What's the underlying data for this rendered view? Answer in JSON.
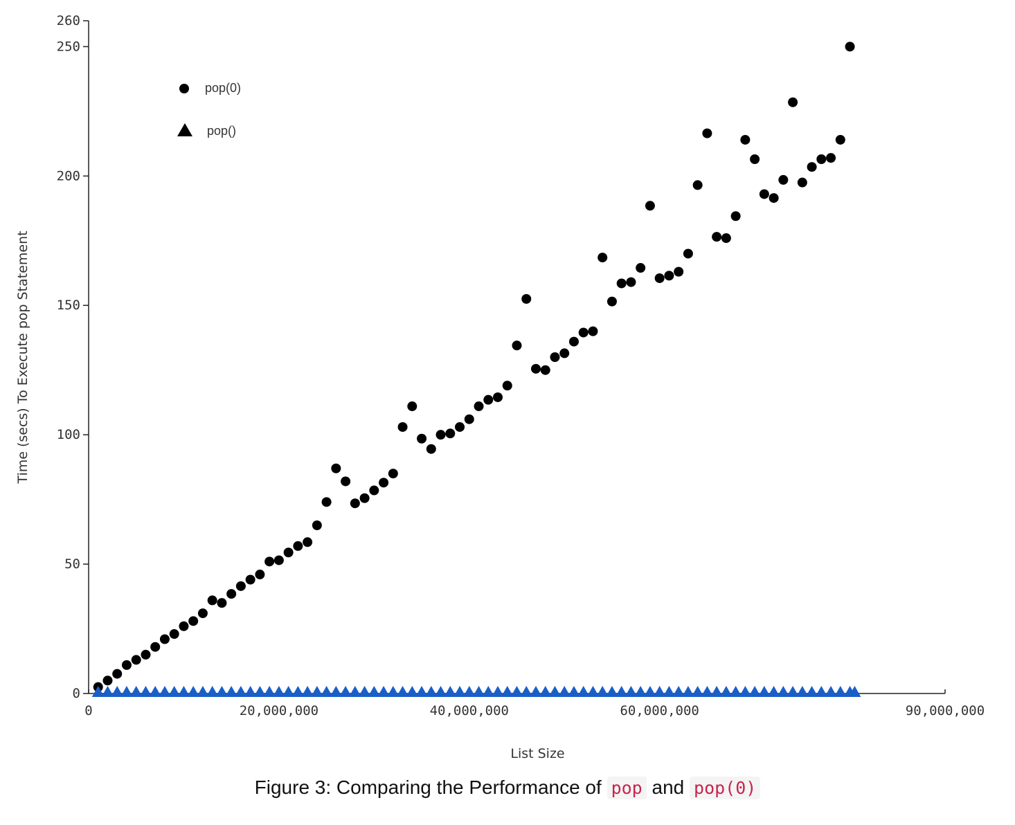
{
  "caption": {
    "prefix": "Figure 3: Comparing the Performance of",
    "code1": "pop",
    "middle": "and",
    "code2": "pop(0)"
  },
  "chart_data": {
    "type": "scatter",
    "xlabel": "List Size",
    "ylabel": "Time (secs) To Execute pop Statement",
    "xlim": [
      0,
      90000000
    ],
    "ylim": [
      0,
      260
    ],
    "x_ticks": [
      {
        "value": 0,
        "label": "0"
      },
      {
        "value": 20000000,
        "label": "20,000,000"
      },
      {
        "value": 40000000,
        "label": "40,000,000"
      },
      {
        "value": 60000000,
        "label": "60,000,000"
      },
      {
        "value": 90000000,
        "label": "90,000,000"
      }
    ],
    "y_ticks": [
      {
        "value": 0,
        "label": "0"
      },
      {
        "value": 50,
        "label": "50"
      },
      {
        "value": 100,
        "label": "100"
      },
      {
        "value": 150,
        "label": "150"
      },
      {
        "value": 200,
        "label": "200"
      },
      {
        "value": 250,
        "label": "250"
      },
      {
        "value": 260,
        "label": "260"
      }
    ],
    "grid": false,
    "legend_position": "top-left",
    "series": [
      {
        "name": "pop(0)",
        "marker": "circle",
        "color": "#000000",
        "points": [
          [
            1000000,
            2.5
          ],
          [
            2000000,
            5.0
          ],
          [
            3000000,
            7.6
          ],
          [
            4000000,
            11.0
          ],
          [
            5000000,
            13.0
          ],
          [
            6000000,
            15.0
          ],
          [
            7000000,
            18.0
          ],
          [
            8000000,
            21.0
          ],
          [
            9000000,
            23.0
          ],
          [
            10000000,
            26.0
          ],
          [
            11000000,
            28.0
          ],
          [
            12000000,
            31.0
          ],
          [
            13000000,
            36.0
          ],
          [
            14000000,
            35.0
          ],
          [
            15000000,
            38.5
          ],
          [
            16000000,
            41.5
          ],
          [
            17000000,
            44.0
          ],
          [
            18000000,
            46.0
          ],
          [
            19000000,
            51.0
          ],
          [
            20000000,
            51.5
          ],
          [
            21000000,
            54.5
          ],
          [
            22000000,
            57.0
          ],
          [
            23000000,
            58.5
          ],
          [
            24000000,
            65.0
          ],
          [
            25000000,
            74.0
          ],
          [
            26000000,
            87.0
          ],
          [
            27000000,
            82.0
          ],
          [
            28000000,
            73.5
          ],
          [
            29000000,
            75.5
          ],
          [
            30000000,
            78.5
          ],
          [
            31000000,
            81.5
          ],
          [
            32000000,
            85.0
          ],
          [
            33000000,
            103.0
          ],
          [
            34000000,
            111.0
          ],
          [
            35000000,
            98.5
          ],
          [
            36000000,
            94.5
          ],
          [
            37000000,
            100.0
          ],
          [
            38000000,
            100.5
          ],
          [
            39000000,
            103.0
          ],
          [
            40000000,
            106.0
          ],
          [
            41000000,
            111.0
          ],
          [
            42000000,
            113.5
          ],
          [
            43000000,
            114.5
          ],
          [
            44000000,
            119.0
          ],
          [
            45000000,
            134.5
          ],
          [
            46000000,
            152.5
          ],
          [
            47000000,
            125.5
          ],
          [
            48000000,
            125.0
          ],
          [
            49000000,
            130.0
          ],
          [
            50000000,
            131.5
          ],
          [
            51000000,
            136.0
          ],
          [
            52000000,
            139.5
          ],
          [
            53000000,
            140.0
          ],
          [
            54000000,
            168.5
          ],
          [
            55000000,
            151.5
          ],
          [
            56000000,
            158.5
          ],
          [
            57000000,
            159.0
          ],
          [
            58000000,
            164.5
          ],
          [
            59000000,
            188.5
          ],
          [
            60000000,
            160.5
          ],
          [
            61000000,
            161.5
          ],
          [
            62000000,
            163.0
          ],
          [
            63000000,
            170.0
          ],
          [
            64000000,
            196.5
          ],
          [
            65000000,
            216.5
          ],
          [
            66000000,
            176.5
          ],
          [
            67000000,
            176.0
          ],
          [
            68000000,
            184.5
          ],
          [
            69000000,
            214.0
          ],
          [
            70000000,
            206.5
          ],
          [
            71000000,
            193.0
          ],
          [
            72000000,
            191.5
          ],
          [
            73000000,
            198.5
          ],
          [
            74000000,
            228.5
          ],
          [
            75000000,
            197.5
          ],
          [
            76000000,
            203.5
          ],
          [
            77000000,
            206.5
          ],
          [
            78000000,
            207.0
          ],
          [
            79000000,
            214.0
          ],
          [
            80000000,
            250.0
          ]
        ]
      },
      {
        "name": "pop()",
        "marker": "triangle",
        "color": "#1a5fc8",
        "points": [
          [
            1000000,
            0
          ],
          [
            2000000,
            0
          ],
          [
            3000000,
            0
          ],
          [
            4000000,
            0
          ],
          [
            5000000,
            0
          ],
          [
            6000000,
            0
          ],
          [
            7000000,
            0
          ],
          [
            8000000,
            0
          ],
          [
            9000000,
            0
          ],
          [
            10000000,
            0
          ],
          [
            11000000,
            0
          ],
          [
            12000000,
            0
          ],
          [
            13000000,
            0
          ],
          [
            14000000,
            0
          ],
          [
            15000000,
            0
          ],
          [
            16000000,
            0
          ],
          [
            17000000,
            0
          ],
          [
            18000000,
            0
          ],
          [
            19000000,
            0
          ],
          [
            20000000,
            0
          ],
          [
            21000000,
            0
          ],
          [
            22000000,
            0
          ],
          [
            23000000,
            0
          ],
          [
            24000000,
            0
          ],
          [
            25000000,
            0
          ],
          [
            26000000,
            0
          ],
          [
            27000000,
            0
          ],
          [
            28000000,
            0
          ],
          [
            29000000,
            0
          ],
          [
            30000000,
            0
          ],
          [
            31000000,
            0
          ],
          [
            32000000,
            0
          ],
          [
            33000000,
            0
          ],
          [
            34000000,
            0
          ],
          [
            35000000,
            0
          ],
          [
            36000000,
            0
          ],
          [
            37000000,
            0
          ],
          [
            38000000,
            0
          ],
          [
            39000000,
            0
          ],
          [
            40000000,
            0
          ],
          [
            41000000,
            0
          ],
          [
            42000000,
            0
          ],
          [
            43000000,
            0
          ],
          [
            44000000,
            0
          ],
          [
            45000000,
            0
          ],
          [
            46000000,
            0
          ],
          [
            47000000,
            0
          ],
          [
            48000000,
            0
          ],
          [
            49000000,
            0
          ],
          [
            50000000,
            0
          ],
          [
            51000000,
            0
          ],
          [
            52000000,
            0
          ],
          [
            53000000,
            0
          ],
          [
            54000000,
            0
          ],
          [
            55000000,
            0
          ],
          [
            56000000,
            0
          ],
          [
            57000000,
            0
          ],
          [
            58000000,
            0
          ],
          [
            59000000,
            0
          ],
          [
            60000000,
            0
          ],
          [
            61000000,
            0
          ],
          [
            62000000,
            0
          ],
          [
            63000000,
            0
          ],
          [
            64000000,
            0
          ],
          [
            65000000,
            0
          ],
          [
            66000000,
            0
          ],
          [
            67000000,
            0
          ],
          [
            68000000,
            0
          ],
          [
            69000000,
            0
          ],
          [
            70000000,
            0
          ],
          [
            71000000,
            0
          ],
          [
            72000000,
            0
          ],
          [
            73000000,
            0
          ],
          [
            74000000,
            0
          ],
          [
            75000000,
            0
          ],
          [
            76000000,
            0
          ],
          [
            77000000,
            0
          ],
          [
            78000000,
            0
          ],
          [
            79000000,
            0
          ],
          [
            80000000,
            0
          ],
          [
            80500000,
            0
          ]
        ]
      }
    ]
  }
}
